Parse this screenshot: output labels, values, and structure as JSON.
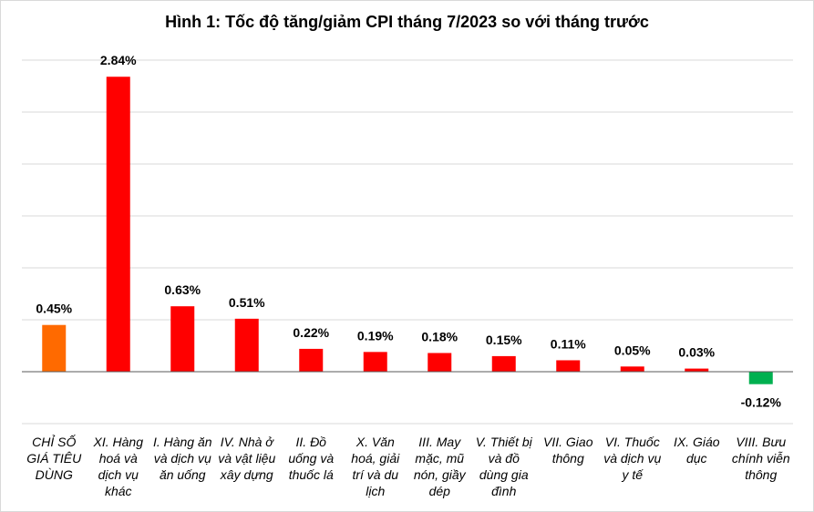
{
  "chart_data": {
    "type": "bar",
    "title": "Hình 1: Tốc độ tăng/giảm CPI tháng 7/2023 so với tháng trước",
    "categories": [
      "CHỈ SỐ GIÁ TIÊU DÙNG",
      "XI. Hàng hoá và dịch vụ khác",
      "I. Hàng ăn và dịch vụ ăn uống",
      "IV. Nhà ở và vật liệu xây dựng",
      "II. Đồ uống và thuốc lá",
      "X. Văn hoá, giải trí và du lịch",
      "III. May mặc, mũ nón, giầy dép",
      "V. Thiết bị và đồ dùng gia đình",
      "VII. Giao thông",
      "VI. Thuốc và dịch vụ y tế",
      "IX. Giáo dục",
      "VIII. Bưu chính viễn thông"
    ],
    "values": [
      0.45,
      2.84,
      0.63,
      0.51,
      0.22,
      0.19,
      0.18,
      0.15,
      0.11,
      0.05,
      0.03,
      -0.12
    ],
    "value_labels": [
      "0.45%",
      "2.84%",
      "0.63%",
      "0.51%",
      "0.22%",
      "0.19%",
      "0.18%",
      "0.15%",
      "0.11%",
      "0.05%",
      "0.03%",
      "-0.12%"
    ],
    "colors": [
      "#ff6a00",
      "#ff0000",
      "#ff0000",
      "#ff0000",
      "#ff0000",
      "#ff0000",
      "#ff0000",
      "#ff0000",
      "#ff0000",
      "#ff0000",
      "#ff0000",
      "#00b050"
    ],
    "ylim": [
      -0.5,
      3.0
    ],
    "grid": true,
    "xlabel": "",
    "ylabel": ""
  }
}
